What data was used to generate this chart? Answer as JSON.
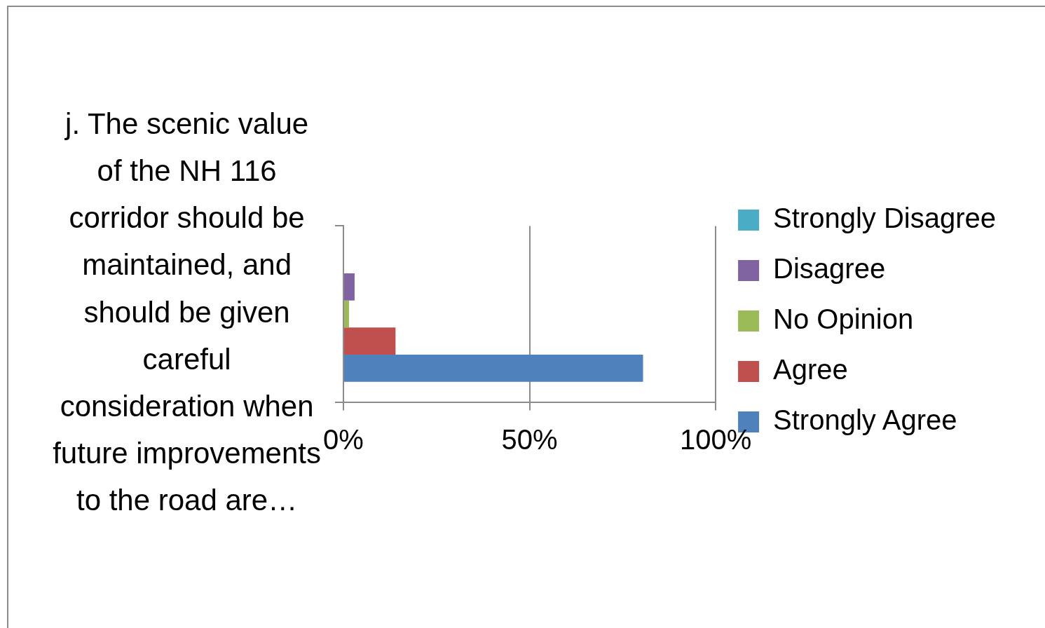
{
  "chart_data": {
    "type": "bar",
    "orientation": "horizontal",
    "categories": [
      "j. The scenic value of the NH 116 corridor should be maintained, and should be given careful consideration when future improvements to the road are…"
    ],
    "series": [
      {
        "name": "Strongly Disagree",
        "color": "#4bacc6",
        "values": [
          0
        ]
      },
      {
        "name": "Disagree",
        "color": "#8064a2",
        "values": [
          3
        ]
      },
      {
        "name": "No Opinion",
        "color": "#9bbb59",
        "values": [
          1.5
        ]
      },
      {
        "name": "Agree",
        "color": "#c0504d",
        "values": [
          14
        ]
      },
      {
        "name": "Strongly Agree",
        "color": "#4f81bd",
        "values": [
          80.5
        ]
      }
    ],
    "xlim": [
      0,
      100
    ],
    "xticks": [
      {
        "value": 0,
        "label": "0%"
      },
      {
        "value": 50,
        "label": "50%"
      },
      {
        "value": 100,
        "label": "100%"
      }
    ],
    "grid": "x",
    "legend": "right"
  }
}
